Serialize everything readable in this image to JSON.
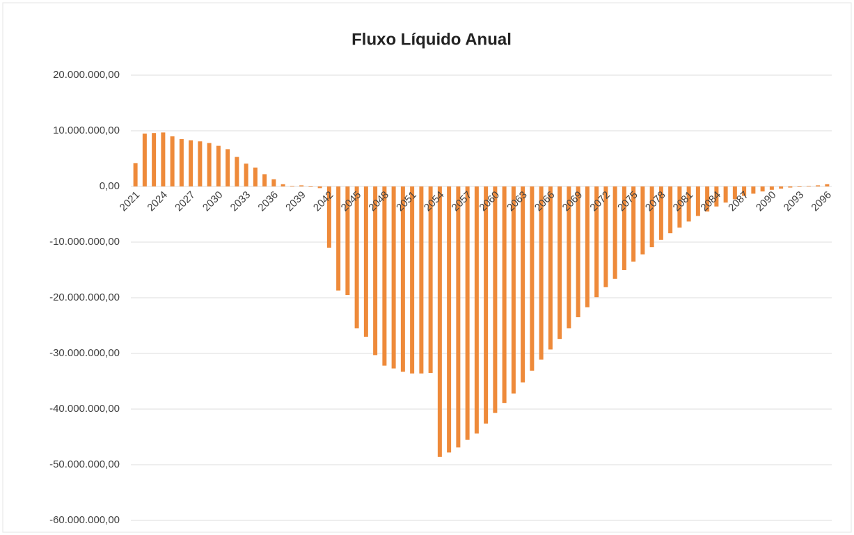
{
  "chart_data": {
    "type": "bar",
    "title": "Fluxo Líquido Anual",
    "categories": [
      "2021",
      null,
      null,
      "2024",
      null,
      null,
      "2027",
      null,
      null,
      "2030",
      null,
      null,
      "2033",
      null,
      null,
      "2036",
      null,
      null,
      "2039",
      null,
      null,
      "2042",
      null,
      null,
      "2045",
      null,
      null,
      "2048",
      null,
      null,
      "2051",
      null,
      null,
      "2054",
      null,
      null,
      "2057",
      null,
      null,
      "2060",
      null,
      null,
      "2063",
      null,
      null,
      "2066",
      null,
      null,
      "2069",
      null,
      null,
      "2072",
      null,
      null,
      "2075",
      null,
      null,
      "2078",
      null,
      null,
      "2081",
      null,
      null,
      "2084",
      null,
      null,
      "2087",
      null,
      null,
      "2090",
      null,
      null,
      "2093",
      null,
      null,
      "2096"
    ],
    "values": [
      4200000,
      9500000,
      9600000,
      9700000,
      9000000,
      8500000,
      8300000,
      8100000,
      7800000,
      7300000,
      6700000,
      5300000,
      4100000,
      3400000,
      2200000,
      1300000,
      400000,
      100000,
      200000,
      -100000,
      -300000,
      -11000000,
      -18700000,
      -19500000,
      -25500000,
      -27000000,
      -30300000,
      -32200000,
      -32700000,
      -33300000,
      -33600000,
      -33600000,
      -33500000,
      -48600000,
      -47800000,
      -46900000,
      -45500000,
      -44400000,
      -42600000,
      -40700000,
      -38900000,
      -37200000,
      -35200000,
      -33100000,
      -31100000,
      -29300000,
      -27400000,
      -25500000,
      -23500000,
      -21700000,
      -19900000,
      -18100000,
      -16600000,
      -15000000,
      -13500000,
      -12200000,
      -10900000,
      -9600000,
      -8400000,
      -7400000,
      -6300000,
      -5300000,
      -4500000,
      -3600000,
      -2900000,
      -2300000,
      -1700000,
      -1300000,
      -900000,
      -600000,
      -400000,
      -200000,
      -100000,
      100000,
      200000,
      400000
    ],
    "color": "#ee8a3a",
    "ylim": [
      -60000000,
      20000000
    ],
    "yticks": [
      {
        "value": -60000000,
        "label": "-60.000.000,00"
      },
      {
        "value": -50000000,
        "label": "-50.000.000,00"
      },
      {
        "value": -40000000,
        "label": "-40.000.000,00"
      },
      {
        "value": -30000000,
        "label": "-30.000.000,00"
      },
      {
        "value": -20000000,
        "label": "-20.000.000,00"
      },
      {
        "value": -10000000,
        "label": "-10.000.000,00"
      },
      {
        "value": 0,
        "label": "0,00"
      },
      {
        "value": 10000000,
        "label": "10.000.000,00"
      },
      {
        "value": 20000000,
        "label": "20.000.000,00"
      }
    ],
    "grid": true
  }
}
